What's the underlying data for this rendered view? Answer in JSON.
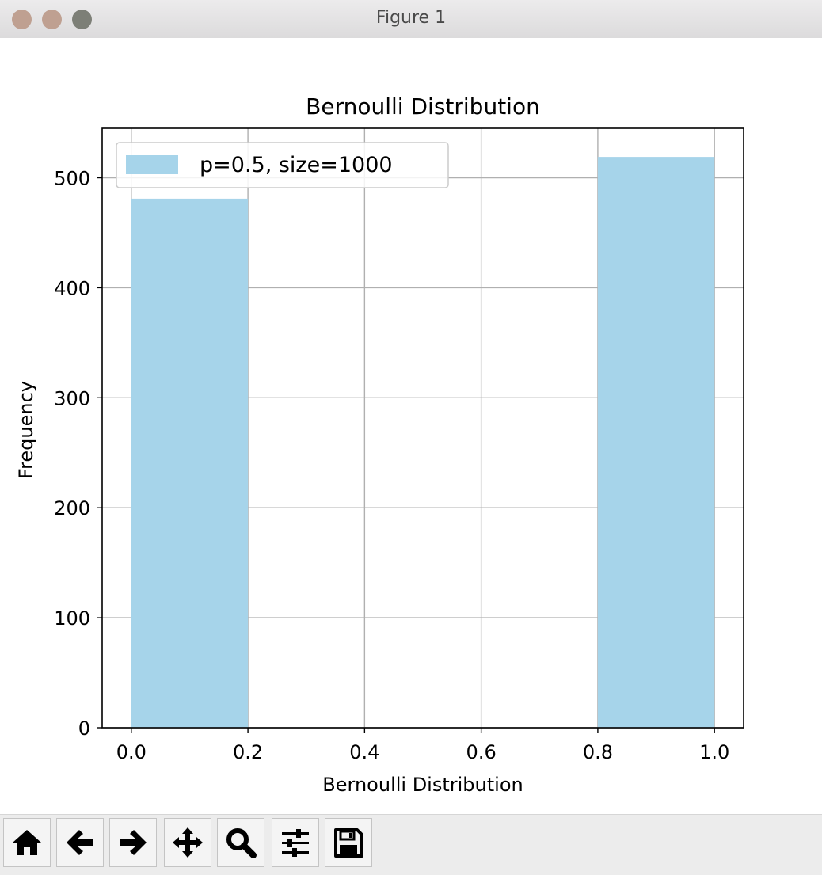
{
  "window": {
    "title": "Figure 1"
  },
  "toolbar": {
    "buttons": [
      {
        "name": "home-button",
        "icon": "home-icon"
      },
      {
        "name": "back-button",
        "icon": "arrow-left-icon"
      },
      {
        "name": "forward-button",
        "icon": "arrow-right-icon"
      },
      {
        "name": "pan-button",
        "icon": "move-icon"
      },
      {
        "name": "zoom-button",
        "icon": "magnifier-icon"
      },
      {
        "name": "configure-subplots-button",
        "icon": "sliders-icon"
      },
      {
        "name": "save-button",
        "icon": "floppy-disk-icon"
      }
    ]
  },
  "chart_data": {
    "type": "bar",
    "title": "Bernoulli Distribution",
    "xlabel": "Bernoulli Distribution",
    "ylabel": "Frequency",
    "bars": [
      {
        "x0": 0.0,
        "x1": 0.2,
        "value": 481
      },
      {
        "x0": 0.8,
        "x1": 1.0,
        "value": 519
      }
    ],
    "series": [
      {
        "name": "p=0.5, size=1000"
      }
    ],
    "xlim": [
      -0.05,
      1.05
    ],
    "ylim": [
      0,
      545
    ],
    "xticks": [
      "0.0",
      "0.2",
      "0.4",
      "0.6",
      "0.8",
      "1.0"
    ],
    "yticks": [
      "0",
      "100",
      "200",
      "300",
      "400",
      "500"
    ],
    "grid": true,
    "legend": "upper left",
    "colors": {
      "bar": "#a6d4ea",
      "grid": "#b0b0b0",
      "axes": "#000000"
    }
  }
}
